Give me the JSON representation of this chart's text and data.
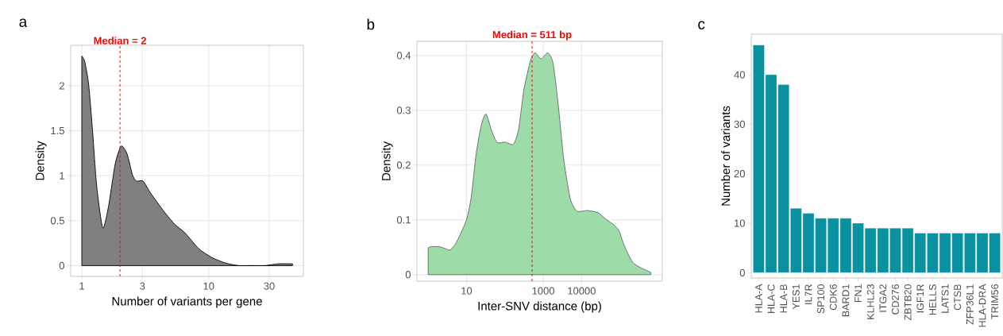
{
  "chart_data": [
    {
      "type": "area",
      "annotations": [
        "a"
      ],
      "xlabel": "Number of variants per gene",
      "ylabel": "Density",
      "log": "x",
      "grid": true,
      "color": "#808080",
      "x": [
        1,
        1.054,
        1.133,
        1.218,
        1.309,
        1.462,
        1.625,
        1.832,
        2.046,
        2.277,
        2.504,
        2.69,
        3.04,
        3.51,
        4.46,
        5.4,
        6.55,
        8.33,
        10.6,
        13.5,
        17.2,
        21.8,
        27.7,
        35.2,
        45.8
      ],
      "values": [
        2.33,
        2.27,
        2.01,
        1.48,
        0.89,
        0.42,
        0.66,
        1.13,
        1.33,
        1.24,
        1.01,
        0.94,
        0.94,
        0.8,
        0.6,
        0.46,
        0.36,
        0.19,
        0.09,
        0.03,
        0,
        0,
        0,
        0.02,
        0.02
      ],
      "xlim": [
        0.817,
        55.8
      ],
      "ylim": [
        -0.12,
        2.45
      ],
      "xticks": [
        1,
        3,
        10,
        30
      ],
      "yticks": [
        0,
        0.5,
        1,
        1.5,
        2
      ],
      "ref_lines": [
        {
          "axis": "x",
          "value": 2,
          "label": "Median = 2",
          "color": "#ff0000",
          "line_style": "dashed"
        }
      ]
    },
    {
      "type": "area",
      "annotations": [
        "b"
      ],
      "xlabel": "Inter-SNV distance (bp)",
      "ylabel": "Density",
      "log": "x",
      "grid": true,
      "color": "#9ddba9",
      "x": [
        1.0,
        1.21,
        1.95,
        2.68,
        3.68,
        5.05,
        6.93,
        10,
        13.1,
        18.0,
        24.7,
        32.4,
        46.6,
        64.1,
        103,
        166,
        228,
        314,
        467,
        611,
        881,
        1310,
        1800,
        2470,
        3400,
        5050,
        7510,
        14190,
        26800,
        43100,
        69300,
        95300,
        131000,
        211000,
        340000,
        641000
      ],
      "values": [
        0.049,
        0.051,
        0.051,
        0.048,
        0.045,
        0.055,
        0.074,
        0.1,
        0.139,
        0.222,
        0.275,
        0.293,
        0.26,
        0.241,
        0.242,
        0.238,
        0.265,
        0.338,
        0.391,
        0.405,
        0.394,
        0.405,
        0.386,
        0.309,
        0.212,
        0.139,
        0.116,
        0.117,
        0.113,
        0.101,
        0.091,
        0.079,
        0.052,
        0.023,
        0.013,
        0.004
      ],
      "xlim": [
        0.51,
        1270000
      ],
      "ylim": [
        -0.012,
        0.426
      ],
      "xticks": [
        10,
        1000,
        10000
      ],
      "yticks": [
        0,
        0.1,
        0.2,
        0.3,
        0.4
      ],
      "ref_lines": [
        {
          "axis": "x",
          "value": 511,
          "label": "Median = 511 bp",
          "color": "#ff0000",
          "line_style": "dashed"
        }
      ]
    },
    {
      "type": "bar",
      "annotations": [
        "c"
      ],
      "ylabel": "Number of variants",
      "color": "#0a91a0",
      "categories": [
        "HLA-A",
        "HLA-C",
        "HLA-B",
        "YES1",
        "IL7R",
        "SP100",
        "CDK6",
        "BARD1",
        "FN1",
        "KLHL23",
        "ITGA2",
        "CD276",
        "ZBTB20",
        "IGF1R",
        "HELLS",
        "LATS1",
        "CTSB",
        "ZFP36L1",
        "HLA-DRA",
        "TRIM56"
      ],
      "values": [
        46,
        40,
        38,
        13,
        12,
        11,
        11,
        11,
        10,
        9,
        9,
        9,
        9,
        8,
        8,
        8,
        8,
        8,
        8,
        8
      ],
      "ylim": [
        -1.07,
        48.2
      ],
      "yticks": [
        0,
        10,
        20,
        30,
        40
      ]
    }
  ]
}
